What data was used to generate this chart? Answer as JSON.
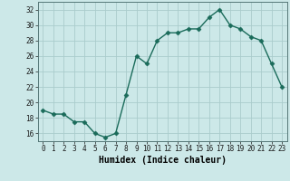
{
  "x": [
    0,
    1,
    2,
    3,
    4,
    5,
    6,
    7,
    8,
    9,
    10,
    11,
    12,
    13,
    14,
    15,
    16,
    17,
    18,
    19,
    20,
    21,
    22,
    23
  ],
  "y": [
    19,
    18.5,
    18.5,
    17.5,
    17.5,
    16,
    15.5,
    16,
    21,
    26,
    25,
    28,
    29,
    29,
    29.5,
    29.5,
    31,
    32,
    30,
    29.5,
    28.5,
    28,
    25,
    22
  ],
  "line_color": "#1a6b5a",
  "marker": "D",
  "markersize": 2.5,
  "linewidth": 1.0,
  "xlabel": "Humidex (Indice chaleur)",
  "xlabel_fontsize": 7,
  "xlabel_weight": "bold",
  "xlim": [
    -0.5,
    23.5
  ],
  "ylim": [
    15,
    33
  ],
  "yticks": [
    16,
    18,
    20,
    22,
    24,
    26,
    28,
    30,
    32
  ],
  "xticks": [
    0,
    1,
    2,
    3,
    4,
    5,
    6,
    7,
    8,
    9,
    10,
    11,
    12,
    13,
    14,
    15,
    16,
    17,
    18,
    19,
    20,
    21,
    22,
    23
  ],
  "xtick_labels": [
    "0",
    "1",
    "2",
    "3",
    "4",
    "5",
    "6",
    "7",
    "8",
    "9",
    "10",
    "11",
    "12",
    "13",
    "14",
    "15",
    "16",
    "17",
    "18",
    "19",
    "20",
    "21",
    "22",
    "23"
  ],
  "bg_color": "#cce8e8",
  "grid_color": "#aacccc",
  "tick_fontsize": 5.5,
  "spine_color": "#557777"
}
